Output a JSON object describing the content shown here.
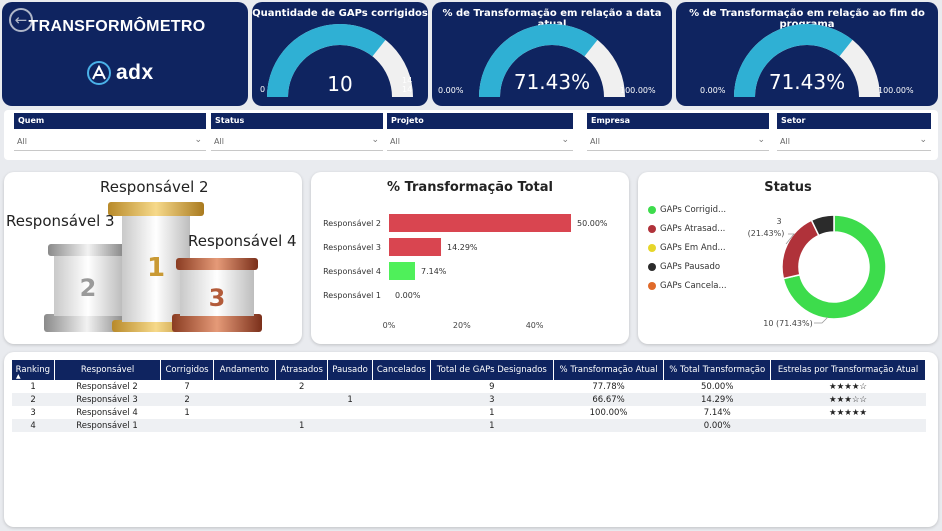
{
  "header": {
    "title": "TRANSFORMÔMETRO",
    "logo_text": "adx",
    "back_icon": "arrow-left-icon"
  },
  "kpis": [
    {
      "title": "Quantidade de GAPs corrigidos",
      "value": "10",
      "min": "0",
      "max": "14",
      "max2": "14",
      "fraction": 0.7143
    },
    {
      "title": "% de Transformação em relação a data atual",
      "value": "71.43%",
      "min": "0.00%",
      "max": "100.00%",
      "fraction": 0.7143
    },
    {
      "title": "% de Transformação em relação ao fim do programa",
      "value": "71.43%",
      "min": "0.00%",
      "max": "100.00%",
      "fraction": 0.7143
    }
  ],
  "filters": [
    {
      "label": "Quem",
      "value": "All"
    },
    {
      "label": "Status",
      "value": "All"
    },
    {
      "label": "Projeto",
      "value": "All"
    },
    {
      "label": "Empresa",
      "value": "All"
    },
    {
      "label": "Setor",
      "value": "All"
    }
  ],
  "podium": {
    "first": "Responsável 2",
    "second": "Responsável 3",
    "third": "Responsável 4",
    "numbers": [
      "1",
      "2",
      "3"
    ]
  },
  "chart_data": [
    {
      "type": "bar",
      "orientation": "horizontal",
      "title": "% Transformação Total",
      "categories": [
        "Responsável 2",
        "Responsável 3",
        "Responsável 4",
        "Responsável 1"
      ],
      "values": [
        50.0,
        14.29,
        7.14,
        0.0
      ],
      "value_labels": [
        "50.00%",
        "14.29%",
        "7.14%",
        "0.00%"
      ],
      "bar_colors": [
        "#d94550",
        "#d94550",
        "#4ff05a",
        "#d94550"
      ],
      "xticks": [
        "0%",
        "20%",
        "40%"
      ],
      "xlim": [
        0,
        50
      ]
    },
    {
      "type": "pie",
      "donut": true,
      "title": "Status",
      "legend": [
        "GAPs Corrigid...",
        "GAPs Atrasad...",
        "GAPs Em And...",
        "GAPs Pausado",
        "GAPs Cancela..."
      ],
      "legend_colors": [
        "#3ddc4c",
        "#b0323a",
        "#e6d62a",
        "#2b2b2b",
        "#e06a2a"
      ],
      "slices": [
        {
          "value": 10,
          "color": "#3ddc4c"
        },
        {
          "value": 3,
          "color": "#b0323a"
        },
        {
          "value": 0,
          "color": "#e6d62a"
        },
        {
          "value": 1,
          "color": "#2b2b2b"
        },
        {
          "value": 0,
          "color": "#e06a2a"
        }
      ],
      "annotations": [
        {
          "line1": "3",
          "line2": "(21.43%)"
        },
        {
          "line1": "10 (71.43%)"
        }
      ],
      "legend_placement": "left"
    }
  ],
  "table": {
    "columns": [
      "Ranking",
      "Responsável",
      "Corrigidos",
      "Andamento",
      "Atrasados",
      "Pausado",
      "Cancelados",
      "Total de GAPs Designados",
      "% Transformação Atual",
      "% Total Transformação",
      "Estrelas por Transformação Atual"
    ],
    "sort_indicator": "▲",
    "rows": [
      [
        "1",
        "Responsável 2",
        "7",
        "",
        "2",
        "",
        "",
        "9",
        "77.78%",
        "50.00%",
        "★★★★☆"
      ],
      [
        "2",
        "Responsável 3",
        "2",
        "",
        "",
        "1",
        "",
        "3",
        "66.67%",
        "14.29%",
        "★★★☆☆"
      ],
      [
        "3",
        "Responsável 4",
        "1",
        "",
        "",
        "",
        "",
        "1",
        "100.00%",
        "7.14%",
        "★★★★★"
      ],
      [
        "4",
        "Responsável 1",
        "",
        "",
        "1",
        "",
        "",
        "1",
        "",
        "0.00%",
        ""
      ]
    ]
  }
}
